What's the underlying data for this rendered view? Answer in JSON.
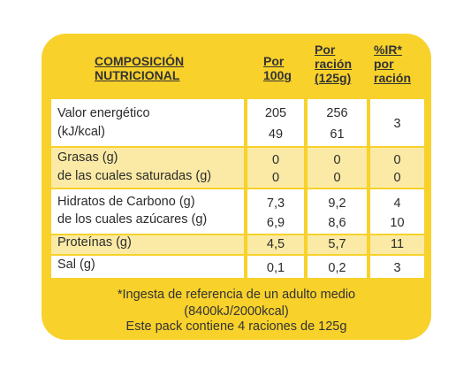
{
  "headers": {
    "composition": [
      "COMPOSICIÓN",
      "NUTRICIONAL"
    ],
    "per100": [
      "Por",
      "100g"
    ],
    "perServing": [
      "Por",
      "ración",
      "(125g)"
    ],
    "ir": [
      "%IR*",
      "por",
      "ración"
    ]
  },
  "rows": [
    {
      "labels": [
        "Valor energético",
        "(kJ/kcal)"
      ],
      "per100": [
        "205",
        "49"
      ],
      "perServing": [
        "256",
        "61"
      ],
      "ir": "3"
    },
    {
      "labels": [
        "Grasas (g)",
        "de las cuales saturadas (g)"
      ],
      "per100": [
        "0",
        "0"
      ],
      "perServing": [
        "0",
        "0"
      ],
      "ir": [
        "0",
        "0"
      ]
    },
    {
      "labels": [
        "Hidratos de Carbono (g)",
        "de los cuales azúcares (g)"
      ],
      "per100": [
        "7,3",
        "6,9"
      ],
      "perServing": [
        "9,2",
        "8,6"
      ],
      "ir": [
        "4",
        "10"
      ]
    },
    {
      "labels": [
        "Proteínas (g)"
      ],
      "per100": [
        "4,5"
      ],
      "perServing": [
        "5,7"
      ],
      "ir": "11"
    },
    {
      "labels": [
        "Sal (g)"
      ],
      "per100": [
        "0,1"
      ],
      "perServing": [
        "0,2"
      ],
      "ir": "3"
    }
  ],
  "footer": {
    "line1": "*Ingesta de referencia de un adulto medio",
    "line2": "(8400kJ/2000kcal)",
    "line3": "Este pack contiene 4 raciones de 125g"
  },
  "colors": {
    "frame": "#f8d12b",
    "altRow": "#fbeaa5",
    "row": "#ffffff"
  }
}
